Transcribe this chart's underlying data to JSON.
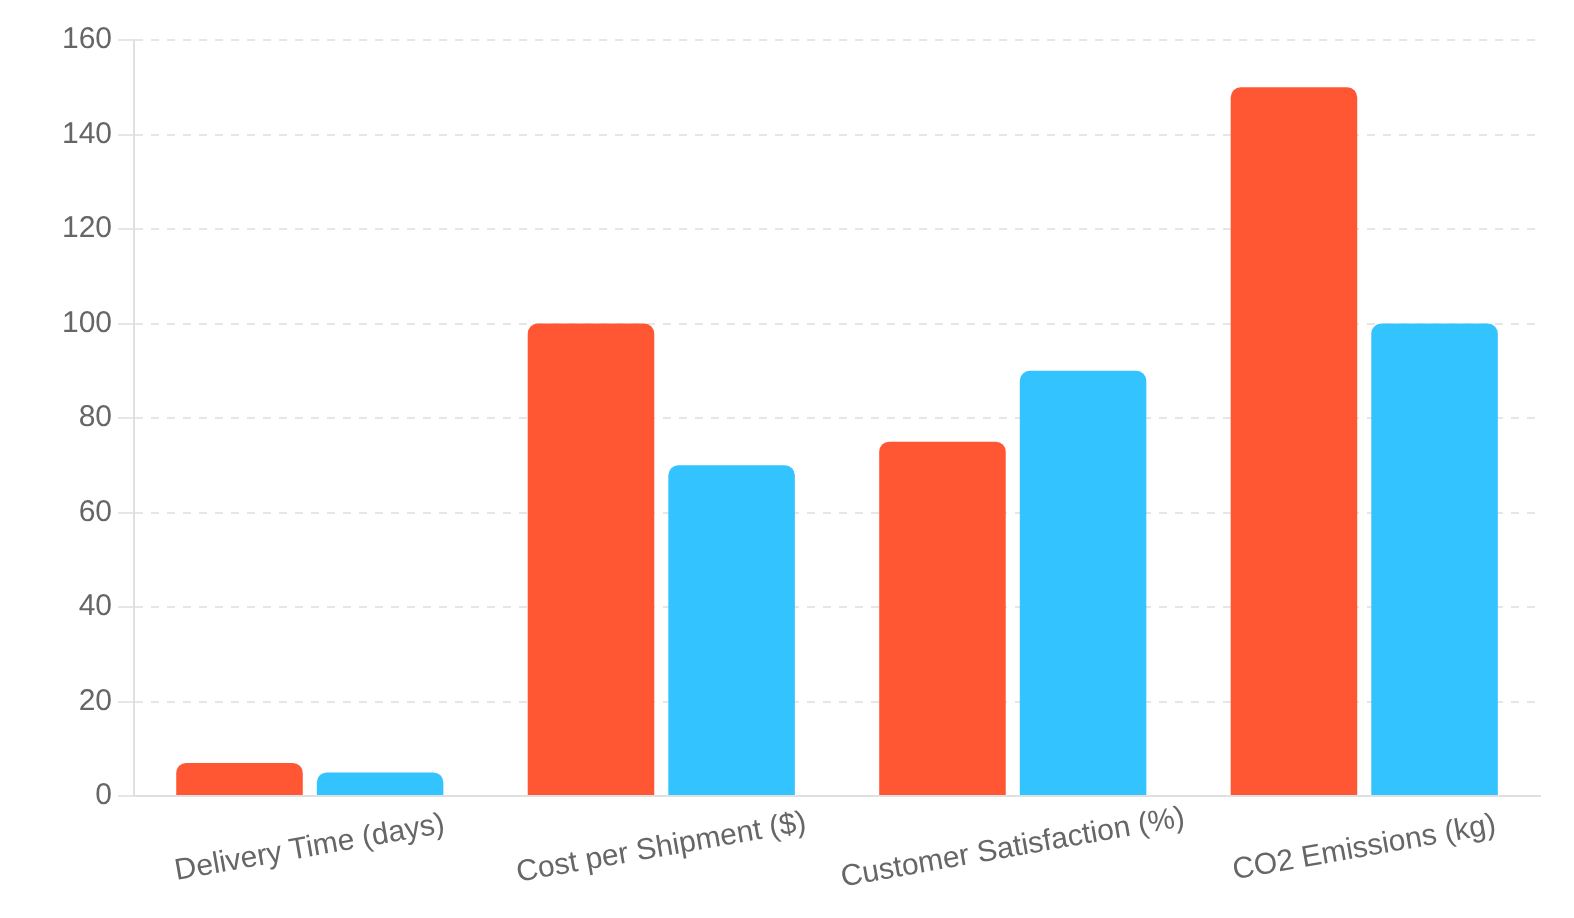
{
  "chart_data": {
    "type": "bar",
    "categories": [
      "Delivery Time (days)",
      "Cost per Shipment ($)",
      "Customer Satisfaction (%)",
      "CO2 Emissions (kg)"
    ],
    "series": [
      {
        "color": "#ff5733",
        "values": [
          7,
          100,
          75,
          150
        ]
      },
      {
        "color": "#33c3ff",
        "values": [
          5,
          70,
          90,
          100
        ]
      }
    ],
    "ylim": [
      0,
      160
    ],
    "yticks": [
      0,
      20,
      40,
      60,
      80,
      100,
      120,
      140,
      160
    ],
    "grid": "y",
    "legend": false
  }
}
